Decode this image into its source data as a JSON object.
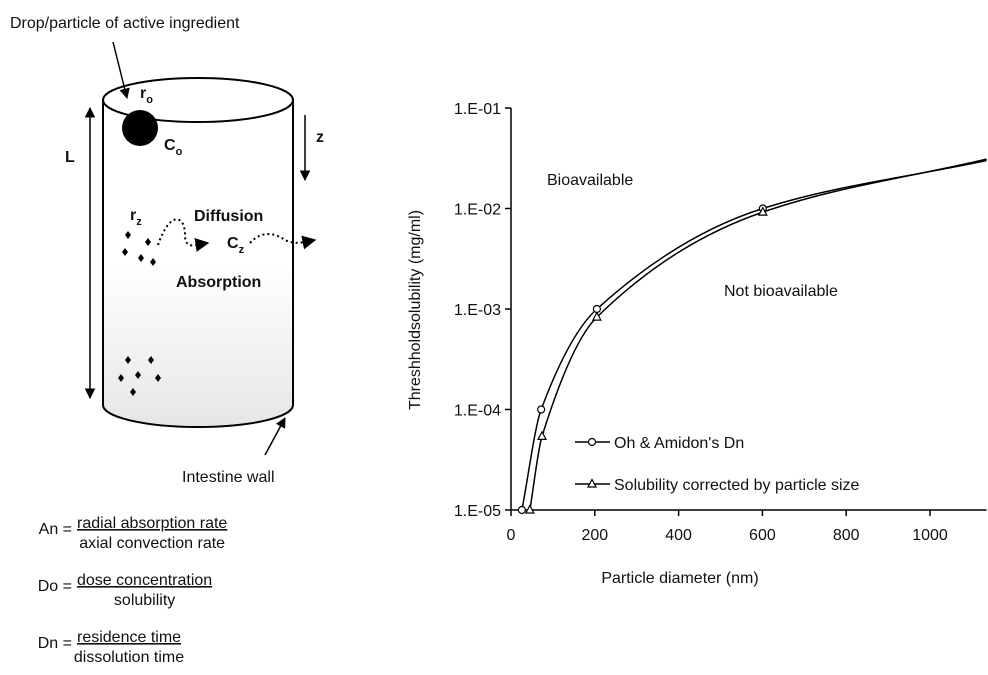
{
  "diagram": {
    "top_label": "Drop/particle of active ingredient",
    "r0": [
      "r",
      "o"
    ],
    "c0": [
      "C",
      "o"
    ],
    "length": "L",
    "axis": "z",
    "rz": [
      "r",
      "z"
    ],
    "diffusion": "Diffusion",
    "cz": [
      "C",
      "z"
    ],
    "absorption": "Absorption",
    "wall": "Intestine wall",
    "equations": [
      {
        "lhs": "An =",
        "numerator": "radial absorption rate",
        "denominator": "axial convection rate"
      },
      {
        "lhs": "Do =",
        "numerator": "dose concentration",
        "denominator": "solubility"
      },
      {
        "lhs": "Dn =",
        "numerator": "residence time",
        "denominator": "dissolution time"
      }
    ]
  },
  "chart_data": {
    "type": "line",
    "x_label": "Particle diameter (nm)",
    "y_label": "Threshholdsolubility (mg/ml)",
    "log_y": true,
    "xlim": [
      0,
      1135
    ],
    "xticks": [
      0,
      200,
      400,
      600,
      800,
      1000
    ],
    "ylim": [
      1e-05,
      0.1
    ],
    "yticks": [
      {
        "value": 1e-05,
        "label": "1.E-05"
      },
      {
        "value": 0.0001,
        "label": "1.E-04"
      },
      {
        "value": 0.001,
        "label": "1.E-03"
      },
      {
        "value": 0.01,
        "label": "1.E-02"
      },
      {
        "value": 0.1,
        "label": "1.E-01"
      }
    ],
    "annotations": [
      "Bioavailable",
      "Not bioavailable"
    ],
    "legend": "lower right",
    "series": [
      {
        "name": "Oh & Amidon's Dn",
        "color": "#000000",
        "marker": "circle",
        "x": [
          26,
          72,
          205,
          601,
          1135
        ],
        "values": [
          1e-05,
          0.0001,
          0.001,
          0.01,
          0.03
        ]
      },
      {
        "name": "Solubility corrected by particle size",
        "color": "#000000",
        "marker": "triangle",
        "x": [
          45,
          74,
          205,
          601,
          1135
        ],
        "values": [
          1e-05,
          5.4e-05,
          0.00083,
          0.0092,
          0.031
        ]
      }
    ]
  }
}
